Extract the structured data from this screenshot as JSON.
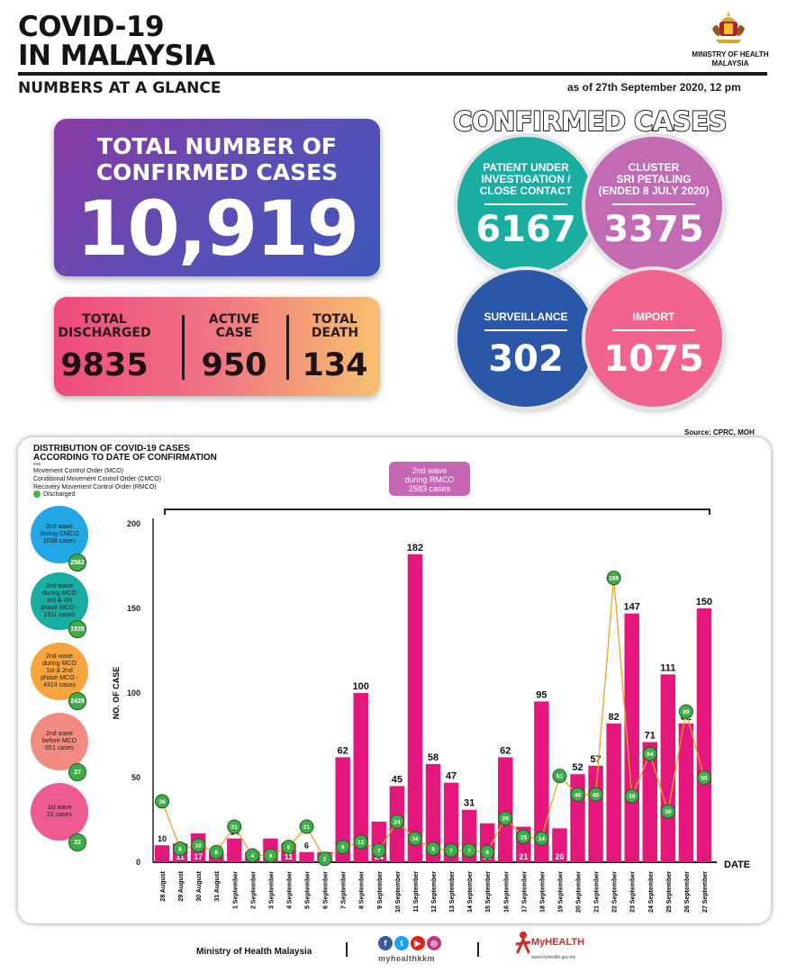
{
  "header": {
    "title_line1": "COVID-19",
    "title_line2": "IN MALAYSIA",
    "subtitle": "NUMBERS AT A GLANCE",
    "as_of": "as of 27th September 2020, 12 pm",
    "ministry": "MINISTRY OF HEALTH\nMALAYSIA"
  },
  "total": {
    "label": "TOTAL NUMBER OF\nCONFIRMED CASES",
    "value": "10,919"
  },
  "stats": [
    {
      "label": "TOTAL\nDISCHARGED",
      "value": "9835"
    },
    {
      "label": "ACTIVE\nCASE",
      "value": "950"
    },
    {
      "label": "TOTAL\nDEATH",
      "value": "134"
    }
  ],
  "confirmed": {
    "title": "CONFIRMED CASES",
    "bubbles": [
      {
        "label": "PATIENT UNDER\nINVESTIGATION /\nCLOSE CONTACT",
        "value": "6167",
        "color": "#1aaea3"
      },
      {
        "label": "CLUSTER\nSRI PETALING\n(ENDED 8 JULY 2020)",
        "value": "3375",
        "color": "#c36ab4"
      },
      {
        "label": "SURVEILLANCE",
        "value": "302",
        "color": "#2a57a8"
      },
      {
        "label": "IMPORT",
        "value": "1075",
        "color": "#f0648e"
      }
    ]
  },
  "source": "Source: CPRC, MOH",
  "legend": {
    "heading": "DISTRIBUTION OF COVID-19 CASES\nACCORDING TO DATE OF CONFIRMATION",
    "stars": "***",
    "mco": "Movement Control Order (MCO)",
    "cmco": "Conditional Movement Control Order (CMCO)",
    "rmco": "Recovery Movement Control Order (RMCO)",
    "discharged": "Discharged"
  },
  "rmco_box": "2nd wave\nduring RMCO\n2583 cases",
  "waves": [
    {
      "label": "2nd wave\nduring CMCO\n2038 cases",
      "badge": "2562",
      "color": "#21a7e3"
    },
    {
      "label": "2nd wave\nduring MCO\n3rd & 4th\nphase MCO -\n1311 cases",
      "badge": "1935",
      "color": "#1aaea3"
    },
    {
      "label": "2nd wave\nduring MCO\n1st & 2nd\nphase MCO -\n4314 cases",
      "badge": "2429",
      "color": "#f6a43b"
    },
    {
      "label": "2nd wave\nbefore MCO\n651 cases",
      "badge": "27",
      "color": "#f28b82"
    },
    {
      "label": "1st wave\n22 cases",
      "badge": "22",
      "color": "#ee5a92"
    }
  ],
  "chart_data": {
    "type": "bar",
    "title": "",
    "xlabel": "DATE",
    "ylabel": "NO. OF CASE",
    "ylim": [
      0,
      200
    ],
    "yticks": [
      0,
      50,
      100,
      150,
      200
    ],
    "categories": [
      "28 August",
      "29 August",
      "30 August",
      "31 August",
      "1 September",
      "2 September",
      "3 September",
      "4 September",
      "5 September",
      "6 September",
      "7 September",
      "8 September",
      "9 September",
      "10 September",
      "11 September",
      "12 September",
      "13 September",
      "14 September",
      "15 September",
      "16 September",
      "17 September",
      "18 September",
      "19 September",
      "20 September",
      "21 September",
      "22 September",
      "23 September",
      "24 September",
      "25 September",
      "26 September",
      "27 September"
    ],
    "series": [
      {
        "name": "Cases",
        "color": "#e3177c",
        "values": [
          10,
          11,
          17,
          6,
          14,
          6,
          14,
          11,
          6,
          6,
          62,
          100,
          24,
          45,
          182,
          58,
          47,
          31,
          23,
          62,
          21,
          95,
          20,
          52,
          57,
          82,
          147,
          71,
          111,
          82,
          150
        ]
      },
      {
        "name": "Discharged",
        "color": "#f2a21b",
        "values": [
          36,
          8,
          10,
          6,
          21,
          4,
          4,
          9,
          21,
          2,
          9,
          12,
          7,
          24,
          14,
          8,
          7,
          7,
          6,
          26,
          15,
          14,
          51,
          40,
          40,
          168,
          39,
          64,
          30,
          89,
          50
        ]
      }
    ]
  },
  "footer": {
    "ministry": "Ministry of Health Malaysia",
    "social_handle": "myhealthkkm",
    "myhealth": "MyHEALTH",
    "url": "www.myhealth.gov.my"
  }
}
